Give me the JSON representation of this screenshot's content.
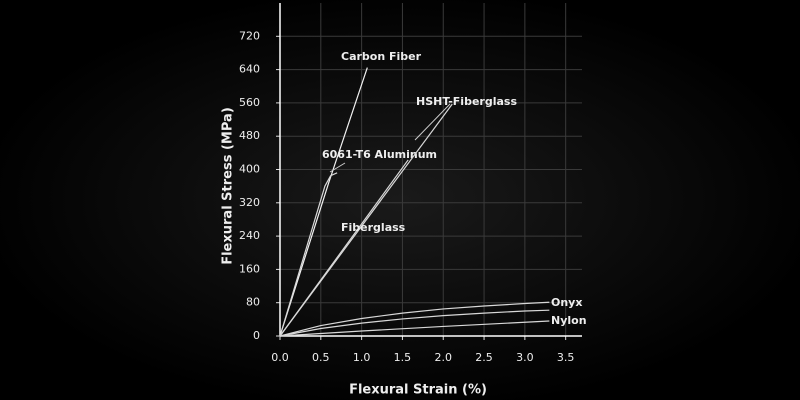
{
  "chart_data": {
    "type": "line",
    "x_label": "Flexural Strain (%)",
    "y_label": "Flexural Stress (MPa)",
    "xlim": [
      0,
      3.7
    ],
    "ylim": [
      0,
      800
    ],
    "xticks": [
      {
        "value": 0,
        "label": "0.0"
      },
      0.5,
      {
        "value": 1,
        "label": "1.0"
      },
      1.5,
      {
        "value": 2,
        "label": "2.0"
      },
      2.5,
      {
        "value": 3,
        "label": "3.0"
      },
      3.5
    ],
    "yticks": [
      0,
      80,
      160,
      240,
      320,
      400,
      480,
      560,
      640,
      720
    ],
    "grid": true,
    "series": [
      {
        "name": "Carbon Fiber",
        "color": "#f2f2f2",
        "x": [
          0,
          0.6,
          1.07
        ],
        "values": [
          0,
          370,
          645
        ]
      },
      {
        "name": "6061-T6 Aluminum",
        "color": "#d8d8d8",
        "x": [
          0,
          0.55,
          0.62,
          0.7
        ],
        "values": [
          0,
          360,
          385,
          392
        ]
      },
      {
        "name": "HSHT-Fiberglass",
        "color": "#d8d8d8",
        "x": [
          0,
          2.11
        ],
        "values": [
          0,
          557
        ]
      },
      {
        "name": "Fiberglass",
        "color": "#d8d8d8",
        "x": [
          0,
          1.57
        ],
        "values": [
          0,
          423
        ]
      },
      {
        "name": "Onyx",
        "color": "#d8d8d8",
        "x": [
          0,
          0.5,
          1,
          1.5,
          2,
          2.5,
          3,
          3.3
        ],
        "values": [
          0,
          25,
          42,
          55,
          65,
          72,
          78,
          81
        ]
      },
      {
        "color": "#d8d8d8",
        "x": [
          0,
          0.5,
          1,
          1.5,
          2,
          2.5,
          3,
          3.3
        ],
        "values": [
          0,
          18,
          31,
          41,
          49,
          55,
          60,
          62
        ]
      },
      {
        "name": "Nylon",
        "color": "#d8d8d8",
        "x": [
          0,
          1,
          2,
          3,
          3.3
        ],
        "values": [
          0,
          12,
          23,
          33,
          36
        ]
      }
    ]
  }
}
